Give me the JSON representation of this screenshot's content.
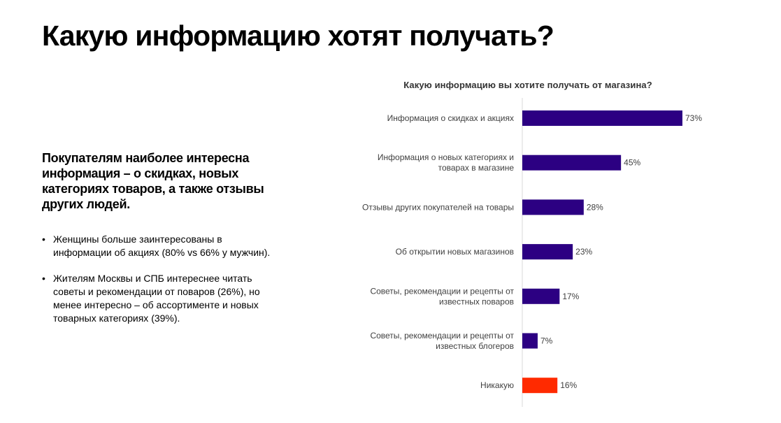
{
  "title": "Какую информацию хотят получать?",
  "lead": "Покупателям наиболее интересна информация – о скидках, новых категориях товаров, а также отзывы других людей.",
  "bullets": [
    "Женщины больше заинтересованы в информации об акциях (80% vs 66% у мужчин).",
    "Жителям Москвы и СПБ интереснее читать советы и рекомендации от поваров (26%), но менее интересно – об ассортименте и новых товарных категориях (39%)."
  ],
  "chart_data": {
    "type": "bar",
    "orientation": "horizontal",
    "title": "Какую информацию вы хотите получать от магазина?",
    "categories": [
      [
        "Информация о скидках и акциях"
      ],
      [
        "Информация о новых категориях и",
        "товарах в магазине"
      ],
      [
        "Отзывы других покупателей на товары"
      ],
      [
        "Об открытии новых магазинов"
      ],
      [
        "Советы, рекомендации и рецепты от",
        "известных поваров"
      ],
      [
        "Советы, рекомендации и рецепты от",
        "известных блогеров"
      ],
      [
        "Никакую"
      ]
    ],
    "values": [
      73,
      45,
      28,
      23,
      17,
      7,
      16
    ],
    "value_labels": [
      "73%",
      "45%",
      "28%",
      "23%",
      "17%",
      "7%",
      "16%"
    ],
    "colors": [
      "#2c0082",
      "#2c0082",
      "#2c0082",
      "#2c0082",
      "#2c0082",
      "#2c0082",
      "#ff2a00"
    ],
    "xlim": [
      0,
      73
    ],
    "grid": false
  }
}
